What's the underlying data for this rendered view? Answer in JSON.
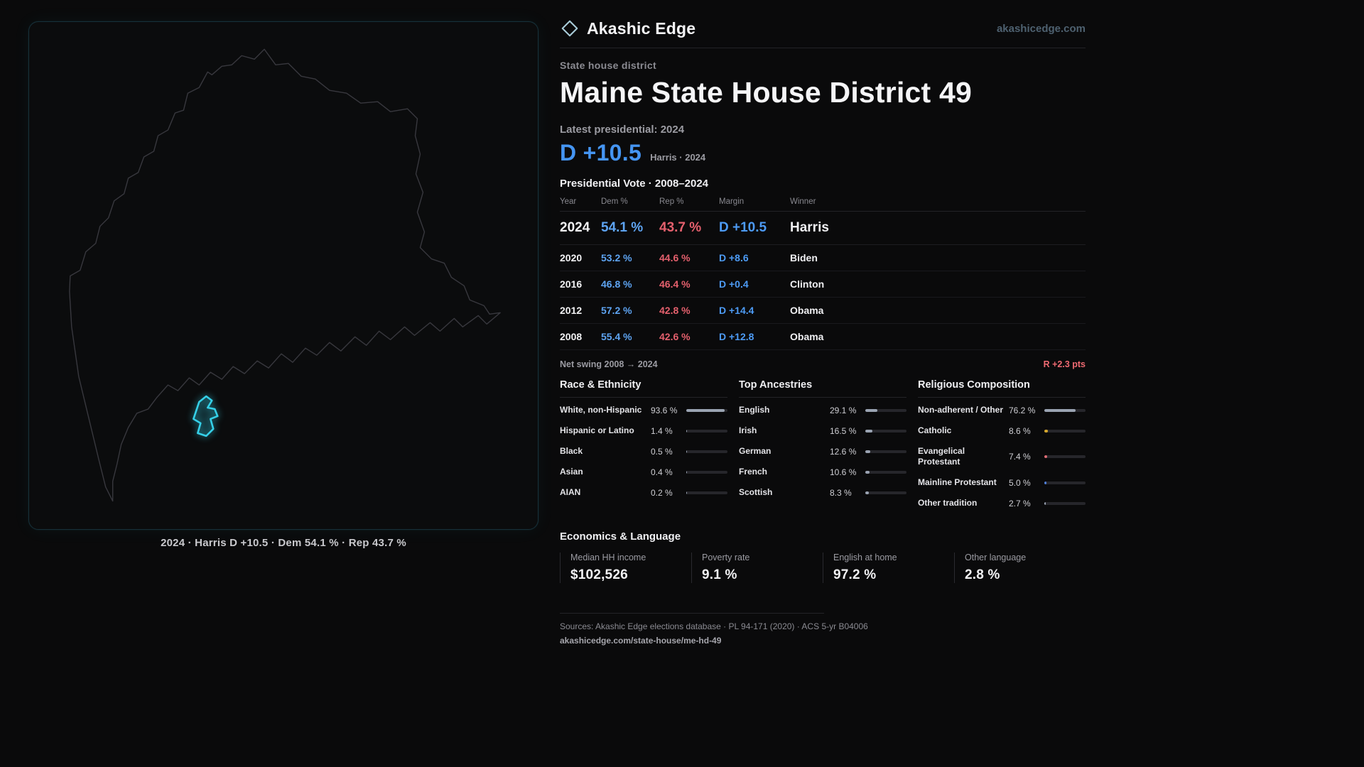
{
  "brand": {
    "name": "Akashic Edge",
    "domain": "akashicedge.com"
  },
  "map": {
    "caption": "2024 · Harris D +10.5 · Dem 54.1 % · Rep 43.7 %",
    "region": "Maine",
    "highlight": "State House District 49"
  },
  "page": {
    "kicker": "State house district",
    "title": "Maine State House District 49",
    "latest_label": "Latest presidential: 2024",
    "headline_margin": "D +10.5",
    "headline_sub": "Harris · 2024"
  },
  "vote_table": {
    "title": "Presidential Vote · 2008–2024",
    "columns": [
      "Year",
      "Dem %",
      "Rep %",
      "Margin",
      "Winner"
    ],
    "rows": [
      {
        "year": "2024",
        "dem": "54.1 %",
        "rep": "43.7 %",
        "margin": "D +10.5",
        "winner": "Harris"
      },
      {
        "year": "2020",
        "dem": "53.2 %",
        "rep": "44.6 %",
        "margin": "D +8.6",
        "winner": "Biden"
      },
      {
        "year": "2016",
        "dem": "46.8 %",
        "rep": "46.4 %",
        "margin": "D +0.4",
        "winner": "Clinton"
      },
      {
        "year": "2012",
        "dem": "57.2 %",
        "rep": "42.8 %",
        "margin": "D +14.4",
        "winner": "Obama"
      },
      {
        "year": "2008",
        "dem": "55.4 %",
        "rep": "42.6 %",
        "margin": "D +12.8",
        "winner": "Obama"
      }
    ]
  },
  "swing": {
    "label": "Net swing 2008 → 2024",
    "value": "R +2.3 pts"
  },
  "demographics": [
    {
      "title": "Race & Ethnicity",
      "rows": [
        {
          "label": "White, non-Hispanic",
          "value": "93.6 %",
          "pct": 93.6,
          "color": "#9aa3b2"
        },
        {
          "label": "Hispanic or Latino",
          "value": "1.4 %",
          "pct": 1.4,
          "color": "#9aa3b2"
        },
        {
          "label": "Black",
          "value": "0.5 %",
          "pct": 0.5,
          "color": "#9aa3b2"
        },
        {
          "label": "Asian",
          "value": "0.4 %",
          "pct": 0.4,
          "color": "#9aa3b2"
        },
        {
          "label": "AIAN",
          "value": "0.2 %",
          "pct": 0.2,
          "color": "#9aa3b2"
        }
      ]
    },
    {
      "title": "Top Ancestries",
      "rows": [
        {
          "label": "English",
          "value": "29.1 %",
          "pct": 29.1,
          "color": "#9aa3b2"
        },
        {
          "label": "Irish",
          "value": "16.5 %",
          "pct": 16.5,
          "color": "#9aa3b2"
        },
        {
          "label": "German",
          "value": "12.6 %",
          "pct": 12.6,
          "color": "#9aa3b2"
        },
        {
          "label": "French",
          "value": "10.6 %",
          "pct": 10.6,
          "color": "#9aa3b2"
        },
        {
          "label": "Scottish",
          "value": "8.3 %",
          "pct": 8.3,
          "color": "#9aa3b2"
        }
      ]
    },
    {
      "title": "Religious Composition",
      "rows": [
        {
          "label": "Non-adherent / Other",
          "value": "76.2 %",
          "pct": 76.2,
          "color": "#9aa3b2"
        },
        {
          "label": "Catholic",
          "value": "8.6 %",
          "pct": 8.6,
          "color": "#d4a72c"
        },
        {
          "label": "Evangelical Protestant",
          "value": "7.4 %",
          "pct": 7.4,
          "color": "#e06c75"
        },
        {
          "label": "Mainline Protestant",
          "value": "5.0 %",
          "pct": 5.0,
          "color": "#4f7fd9"
        },
        {
          "label": "Other tradition",
          "value": "2.7 %",
          "pct": 2.7,
          "color": "#9aa3b2"
        }
      ]
    }
  ],
  "economics": {
    "title": "Economics & Language",
    "stats": [
      {
        "label": "Median HH income",
        "value": "$102,526"
      },
      {
        "label": "Poverty rate",
        "value": "9.1 %"
      },
      {
        "label": "English at home",
        "value": "97.2 %"
      },
      {
        "label": "Other language",
        "value": "2.8 %"
      }
    ]
  },
  "footer": {
    "sources": "Sources: Akashic Edge elections database · PL 94-171 (2020) · ACS 5-yr B04006",
    "permalink": "akashicedge.com/state-house/me-hd-49"
  },
  "colors": {
    "dem_blue": "#4d9bf5",
    "rep_red": "#e4606d",
    "accent_cyan": "#35d0e8"
  }
}
